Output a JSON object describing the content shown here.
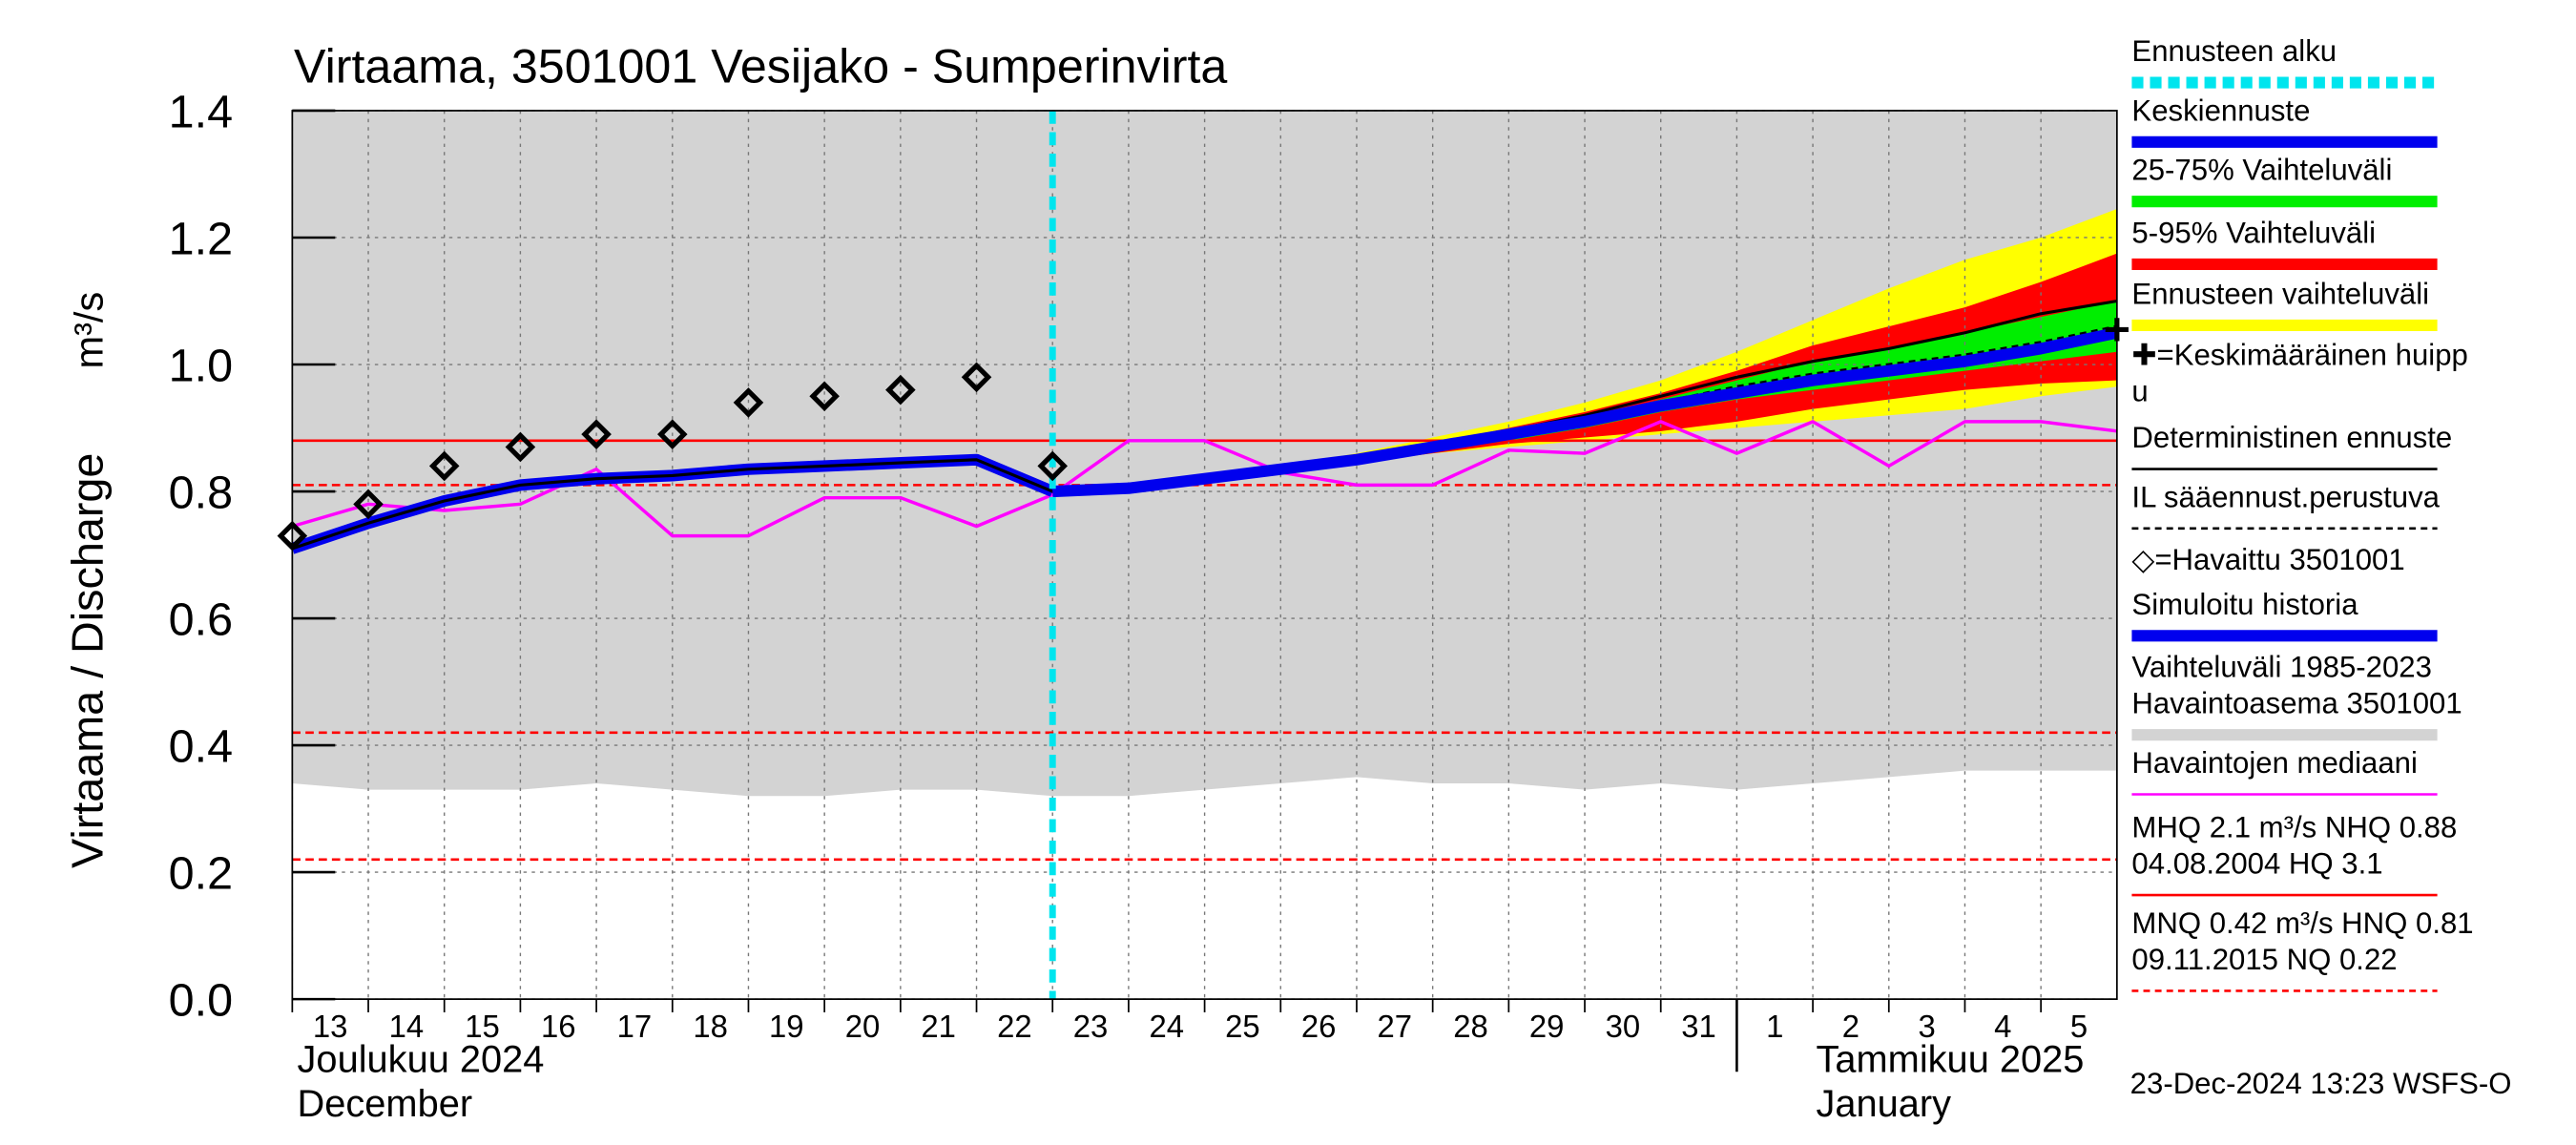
{
  "chart_data": {
    "type": "line",
    "title": "Virtaama, 3501001 Vesijako - Sumperinvirta",
    "y_label": "Virtaama / Discharge",
    "y_unit_label": "m³/s",
    "xlim": [
      0,
      24
    ],
    "ylim": [
      0,
      1.4
    ],
    "yticks": [
      {
        "value": 0,
        "label": "0.0"
      },
      0.2,
      0.4,
      0.6,
      0.8,
      {
        "value": 1,
        "label": "1.0"
      },
      1.2,
      1.4
    ],
    "xticks": [
      {
        "value": 0,
        "label": "13"
      },
      {
        "value": 1,
        "label": "14"
      },
      {
        "value": 2,
        "label": "15"
      },
      {
        "value": 3,
        "label": "16"
      },
      {
        "value": 4,
        "label": "17"
      },
      {
        "value": 5,
        "label": "18"
      },
      {
        "value": 6,
        "label": "19"
      },
      {
        "value": 7,
        "label": "20"
      },
      {
        "value": 8,
        "label": "21"
      },
      {
        "value": 9,
        "label": "22"
      },
      {
        "value": 10,
        "label": "23"
      },
      {
        "value": 11,
        "label": "24"
      },
      {
        "value": 12,
        "label": "25"
      },
      {
        "value": 13,
        "label": "26"
      },
      {
        "value": 14,
        "label": "27"
      },
      {
        "value": 15,
        "label": "28"
      },
      {
        "value": 16,
        "label": "29"
      },
      {
        "value": 17,
        "label": "30"
      },
      {
        "value": 18,
        "label": "31"
      },
      {
        "value": 19,
        "label": "1"
      },
      {
        "value": 20,
        "label": "2"
      },
      {
        "value": 21,
        "label": "3"
      },
      {
        "value": 22,
        "label": "4"
      },
      {
        "value": 23,
        "label": "5"
      }
    ],
    "month_labels": [
      {
        "value": 0,
        "lines": [
          "Joulukuu  2024",
          "December"
        ]
      },
      {
        "value": 19,
        "lines": [
          "Tammikuu  2025",
          "January"
        ]
      }
    ],
    "grid": true,
    "bands": [
      {
        "color": "#d3d3d3",
        "x": [
          0,
          1,
          2,
          3,
          4,
          5,
          6,
          7,
          8,
          9,
          10,
          11,
          12,
          13,
          14,
          15,
          16,
          17,
          18,
          19,
          20,
          21,
          22,
          23,
          24
        ],
        "lower": [
          0.34,
          0.33,
          0.33,
          0.33,
          0.34,
          0.33,
          0.32,
          0.32,
          0.33,
          0.33,
          0.32,
          0.32,
          0.33,
          0.34,
          0.35,
          0.34,
          0.34,
          0.33,
          0.34,
          0.33,
          0.34,
          0.35,
          0.36,
          0.36,
          0.36
        ],
        "upper": [
          1.4,
          1.4,
          1.4,
          1.4,
          1.4,
          1.4,
          1.4,
          1.4,
          1.4,
          1.4,
          1.4,
          1.4,
          1.4,
          1.4,
          1.4,
          1.4,
          1.4,
          1.4,
          1.4,
          1.4,
          1.4,
          1.4,
          1.4,
          1.4,
          1.4
        ]
      },
      {
        "color": "#ffff00",
        "x": [
          10,
          11,
          12,
          13,
          14,
          15,
          16,
          17,
          18,
          19,
          20,
          21,
          22,
          23,
          24
        ],
        "lower": [
          0.8,
          0.805,
          0.82,
          0.83,
          0.845,
          0.86,
          0.87,
          0.88,
          0.89,
          0.9,
          0.91,
          0.92,
          0.93,
          0.95,
          0.965
        ],
        "upper": [
          0.8,
          0.805,
          0.82,
          0.84,
          0.86,
          0.885,
          0.91,
          0.94,
          0.975,
          1.02,
          1.07,
          1.12,
          1.165,
          1.2,
          1.245
        ]
      },
      {
        "color": "#ff0000",
        "x": [
          10,
          11,
          12,
          13,
          14,
          15,
          16,
          17,
          18,
          19,
          20,
          21,
          22,
          23,
          24
        ],
        "lower": [
          0.8,
          0.805,
          0.82,
          0.83,
          0.845,
          0.86,
          0.875,
          0.885,
          0.895,
          0.91,
          0.93,
          0.945,
          0.96,
          0.97,
          0.975
        ],
        "upper": [
          0.8,
          0.805,
          0.82,
          0.84,
          0.855,
          0.875,
          0.9,
          0.925,
          0.955,
          0.99,
          1.03,
          1.06,
          1.09,
          1.13,
          1.175
        ]
      },
      {
        "color": "#00ee00",
        "x": [
          10,
          11,
          12,
          13,
          14,
          15,
          16,
          17,
          18,
          19,
          20,
          21,
          22,
          23,
          24
        ],
        "lower": [
          0.8,
          0.805,
          0.82,
          0.83,
          0.845,
          0.865,
          0.88,
          0.9,
          0.925,
          0.945,
          0.96,
          0.975,
          0.99,
          1.005,
          1.02
        ],
        "upper": [
          0.8,
          0.805,
          0.82,
          0.835,
          0.85,
          0.87,
          0.89,
          0.915,
          0.945,
          0.975,
          1.005,
          1.025,
          1.05,
          1.075,
          1.1
        ]
      }
    ],
    "reference_lines": [
      {
        "value": 0.88,
        "color": "#ff0000",
        "style": "solid"
      },
      {
        "value": 0.81,
        "color": "#ff0000",
        "style": "dashed"
      },
      {
        "value": 0.42,
        "color": "#ff0000",
        "style": "dashed"
      },
      {
        "value": 0.22,
        "color": "#ff0000",
        "style": "dashed"
      }
    ],
    "series": [
      {
        "color": "#ff00ff",
        "style": "median",
        "x": [
          0,
          1,
          2,
          3,
          4,
          5,
          6,
          7,
          8,
          9,
          10,
          11,
          12,
          13,
          14,
          15,
          16,
          17,
          18,
          19,
          20,
          21,
          22,
          23,
          24
        ],
        "values": [
          0.745,
          0.78,
          0.77,
          0.78,
          0.835,
          0.73,
          0.73,
          0.79,
          0.79,
          0.745,
          0.795,
          0.88,
          0.88,
          0.83,
          0.81,
          0.81,
          0.865,
          0.86,
          0.91,
          0.86,
          0.91,
          0.84,
          0.91,
          0.91,
          0.895
        ]
      },
      {
        "color": "#0000ee",
        "style": "thick",
        "x": [
          0,
          1,
          2,
          3,
          4,
          5,
          6,
          7,
          8,
          9,
          10
        ],
        "values": [
          0.71,
          0.75,
          0.785,
          0.81,
          0.82,
          0.825,
          0.835,
          0.84,
          0.845,
          0.85,
          0.8
        ]
      },
      {
        "color": "#000000",
        "style": "solid",
        "x": [
          0,
          1,
          2,
          3,
          4,
          5,
          6,
          7,
          8,
          9,
          10,
          11,
          12,
          13,
          14,
          15,
          16,
          17,
          18,
          19,
          20,
          21,
          22,
          23,
          24
        ],
        "values": [
          0.71,
          0.75,
          0.785,
          0.81,
          0.82,
          0.825,
          0.835,
          0.84,
          0.845,
          0.85,
          0.8,
          0.805,
          0.82,
          0.835,
          0.855,
          0.875,
          0.895,
          0.92,
          0.95,
          0.98,
          1.005,
          1.025,
          1.05,
          1.08,
          1.1
        ]
      },
      {
        "color": "#000000",
        "style": "dashed",
        "x": [
          10,
          11,
          12,
          13,
          14,
          15,
          16,
          17,
          18,
          19,
          20,
          21,
          22,
          23,
          24
        ],
        "values": [
          0.8,
          0.805,
          0.82,
          0.835,
          0.85,
          0.87,
          0.89,
          0.915,
          0.94,
          0.965,
          0.985,
          1.0,
          1.015,
          1.035,
          1.06
        ]
      },
      {
        "color": "#0000ee",
        "style": "thick",
        "x": [
          10,
          11,
          12,
          13,
          14,
          15,
          16,
          17,
          18,
          19,
          20,
          21,
          22,
          23,
          24
        ],
        "values": [
          0.8,
          0.805,
          0.82,
          0.835,
          0.85,
          0.87,
          0.89,
          0.91,
          0.935,
          0.955,
          0.975,
          0.99,
          1.005,
          1.025,
          1.05
        ]
      }
    ],
    "observed": {
      "x": [
        0,
        1,
        2,
        3,
        4,
        5,
        6,
        7,
        8,
        9,
        10
      ],
      "values": [
        0.73,
        0.78,
        0.84,
        0.87,
        0.89,
        0.89,
        0.94,
        0.95,
        0.96,
        0.98,
        0.84
      ]
    },
    "mean_peak": {
      "x": [
        24
      ],
      "values": [
        1.055
      ]
    },
    "forecast_start": 10,
    "legend": [
      {
        "lines": [
          "Ennusteen alku"
        ],
        "color": "#00e5ee",
        "style": "dashed-thick"
      },
      {
        "lines": [
          "Keskiennuste"
        ],
        "color": "#0000ee",
        "style": "thick"
      },
      {
        "lines": [
          "25-75% Vaihteluväli"
        ],
        "color": "#00ee00",
        "style": "thick"
      },
      {
        "lines": [
          "5-95% Vaihteluväli"
        ],
        "color": "#ff0000",
        "style": "thick"
      },
      {
        "lines": [
          "Ennusteen vaihteluväli"
        ],
        "color": "#ffff00",
        "style": "thick"
      },
      {
        "lines": [
          "✚=Keskimääräinen huipp",
          "u"
        ],
        "color": "#000000",
        "style": "none"
      },
      {
        "lines": [
          "Deterministinen ennuste"
        ],
        "color": "#000000",
        "style": "solid"
      },
      {
        "lines": [
          "IL sääennust.perustuva"
        ],
        "color": "#000000",
        "style": "dashed"
      },
      {
        "lines": [
          "◇=Havaittu 3501001"
        ],
        "color": "#000000",
        "style": "none"
      },
      {
        "lines": [
          "Simuloitu historia"
        ],
        "color": "#0000ee",
        "style": "thick"
      },
      {
        "lines": [
          "Vaihteluväli 1985-2023",
          " Havaintoasema 3501001"
        ],
        "color": "#d3d3d3",
        "style": "thick"
      },
      {
        "lines": [
          "Havaintojen mediaani"
        ],
        "color": "#ff00ff",
        "style": "solid"
      },
      {
        "lines": [
          "MHQ  2.1 m³/s NHQ 0.88",
          "04.08.2004 HQ  3.1"
        ],
        "color": "#ff0000",
        "style": "solid"
      },
      {
        "lines": [
          "MNQ 0.42 m³/s HNQ 0.81",
          "09.11.2015 NQ 0.22"
        ],
        "color": "#ff0000",
        "style": "dashed"
      }
    ],
    "timestamp": "23-Dec-2024 13:23 WSFS-O"
  }
}
